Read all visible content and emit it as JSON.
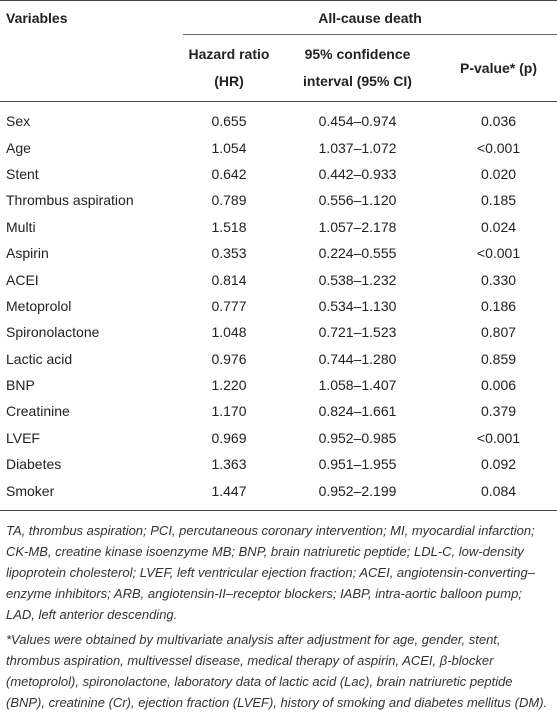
{
  "table": {
    "header": {
      "variables": "Variables",
      "group": "All-cause death",
      "columns": [
        "Hazard ratio (HR)",
        "95% confidence interval (95% CI)",
        "P-value* (p)"
      ]
    },
    "rows": [
      [
        "Sex",
        "0.655",
        "0.454–0.974",
        "0.036"
      ],
      [
        "Age",
        "1.054",
        "1.037–1.072",
        "<0.001"
      ],
      [
        "Stent",
        "0.642",
        "0.442–0.933",
        "0.020"
      ],
      [
        "Thrombus aspiration",
        "0.789",
        "0.556–1.120",
        "0.185"
      ],
      [
        "Multi",
        "1.518",
        "1.057–2.178",
        "0.024"
      ],
      [
        "Aspirin",
        "0.353",
        "0.224–0.555",
        "<0.001"
      ],
      [
        "ACEI",
        "0.814",
        "0.538–1.232",
        "0.330"
      ],
      [
        "Metoprolol",
        "0.777",
        "0.534–1.130",
        "0.186"
      ],
      [
        "Spironolactone",
        "1.048",
        "0.721–1.523",
        "0.807"
      ],
      [
        "Lactic acid",
        "0.976",
        "0.744–1.280",
        "0.859"
      ],
      [
        "BNP",
        "1.220",
        "1.058–1.407",
        "0.006"
      ],
      [
        "Creatinine",
        "1.170",
        "0.824–1.661",
        "0.379"
      ],
      [
        "LVEF",
        "0.969",
        "0.952–0.985",
        "<0.001"
      ],
      [
        "Diabetes",
        "1.363",
        "0.951–1.955",
        "0.092"
      ],
      [
        "Smoker",
        "1.447",
        "0.952–2.199",
        "0.084"
      ]
    ]
  },
  "footnotes": [
    "TA, thrombus aspiration; PCI, percutaneous coronary intervention; MI, myocardial infarction; CK-MB, creatine kinase isoenzyme MB; BNP, brain natriuretic peptide; LDL-C, low-density lipoprotein cholesterol; LVEF, left ventricular ejection fraction; ACEI, angiotensin-converting–enzyme inhibitors; ARB, angiotensin-II–receptor blockers; IABP, intra-aortic balloon pump; LAD, left anterior descending.",
    "*Values were obtained by multivariate analysis after adjustment for age, gender, stent, thrombus aspiration, multivessel disease, medical therapy of aspirin, ACEI, β-blocker (metoprolol), spironolactone, laboratory data of lactic acid (Lac), brain natriuretic peptide (BNP), creatinine (Cr), ejection fraction (LVEF), history of smoking and diabetes mellitus (DM)."
  ]
}
